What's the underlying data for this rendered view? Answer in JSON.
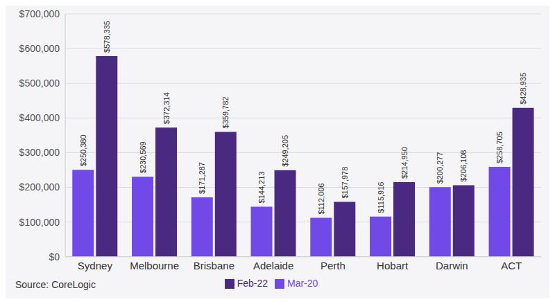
{
  "chart_data": {
    "type": "bar",
    "categories": [
      "Sydney",
      "Melbourne",
      "Brisbane",
      "Adelaide",
      "Perth",
      "Hobart",
      "Darwin",
      "ACT"
    ],
    "series": [
      {
        "name": "Mar-20",
        "color": "#7049e6",
        "values": [
          250380,
          230569,
          171287,
          144213,
          112006,
          115916,
          200277,
          258705
        ],
        "value_labels": [
          "$250,380",
          "$230,569",
          "$171,287",
          "$144,213",
          "$112,006",
          "$115,916",
          "$200,277",
          "$258,705"
        ]
      },
      {
        "name": "Feb-22",
        "color": "#4a2a80",
        "values": [
          578335,
          372314,
          359782,
          249205,
          157978,
          214950,
          206108,
          428935
        ],
        "value_labels": [
          "$578,335",
          "$372,314",
          "$359,782",
          "$249,205",
          "$157,978",
          "$214,950",
          "$206,108",
          "$428,935"
        ]
      }
    ],
    "ylim": [
      0,
      700000
    ],
    "yticks": [
      {
        "value": 0,
        "label": "$0"
      },
      {
        "value": 100000,
        "label": "$100,000"
      },
      {
        "value": 200000,
        "label": "$200,000"
      },
      {
        "value": 300000,
        "label": "$300,000"
      },
      {
        "value": 400000,
        "label": "$400,000"
      },
      {
        "value": 500000,
        "label": "$500,000"
      },
      {
        "value": 600000,
        "label": "$600,000"
      },
      {
        "value": 700000,
        "label": "$700,000"
      }
    ],
    "grid": true,
    "legend": "bottom",
    "data_labels": true,
    "annotations": [
      "Source: CoreLogic"
    ]
  }
}
